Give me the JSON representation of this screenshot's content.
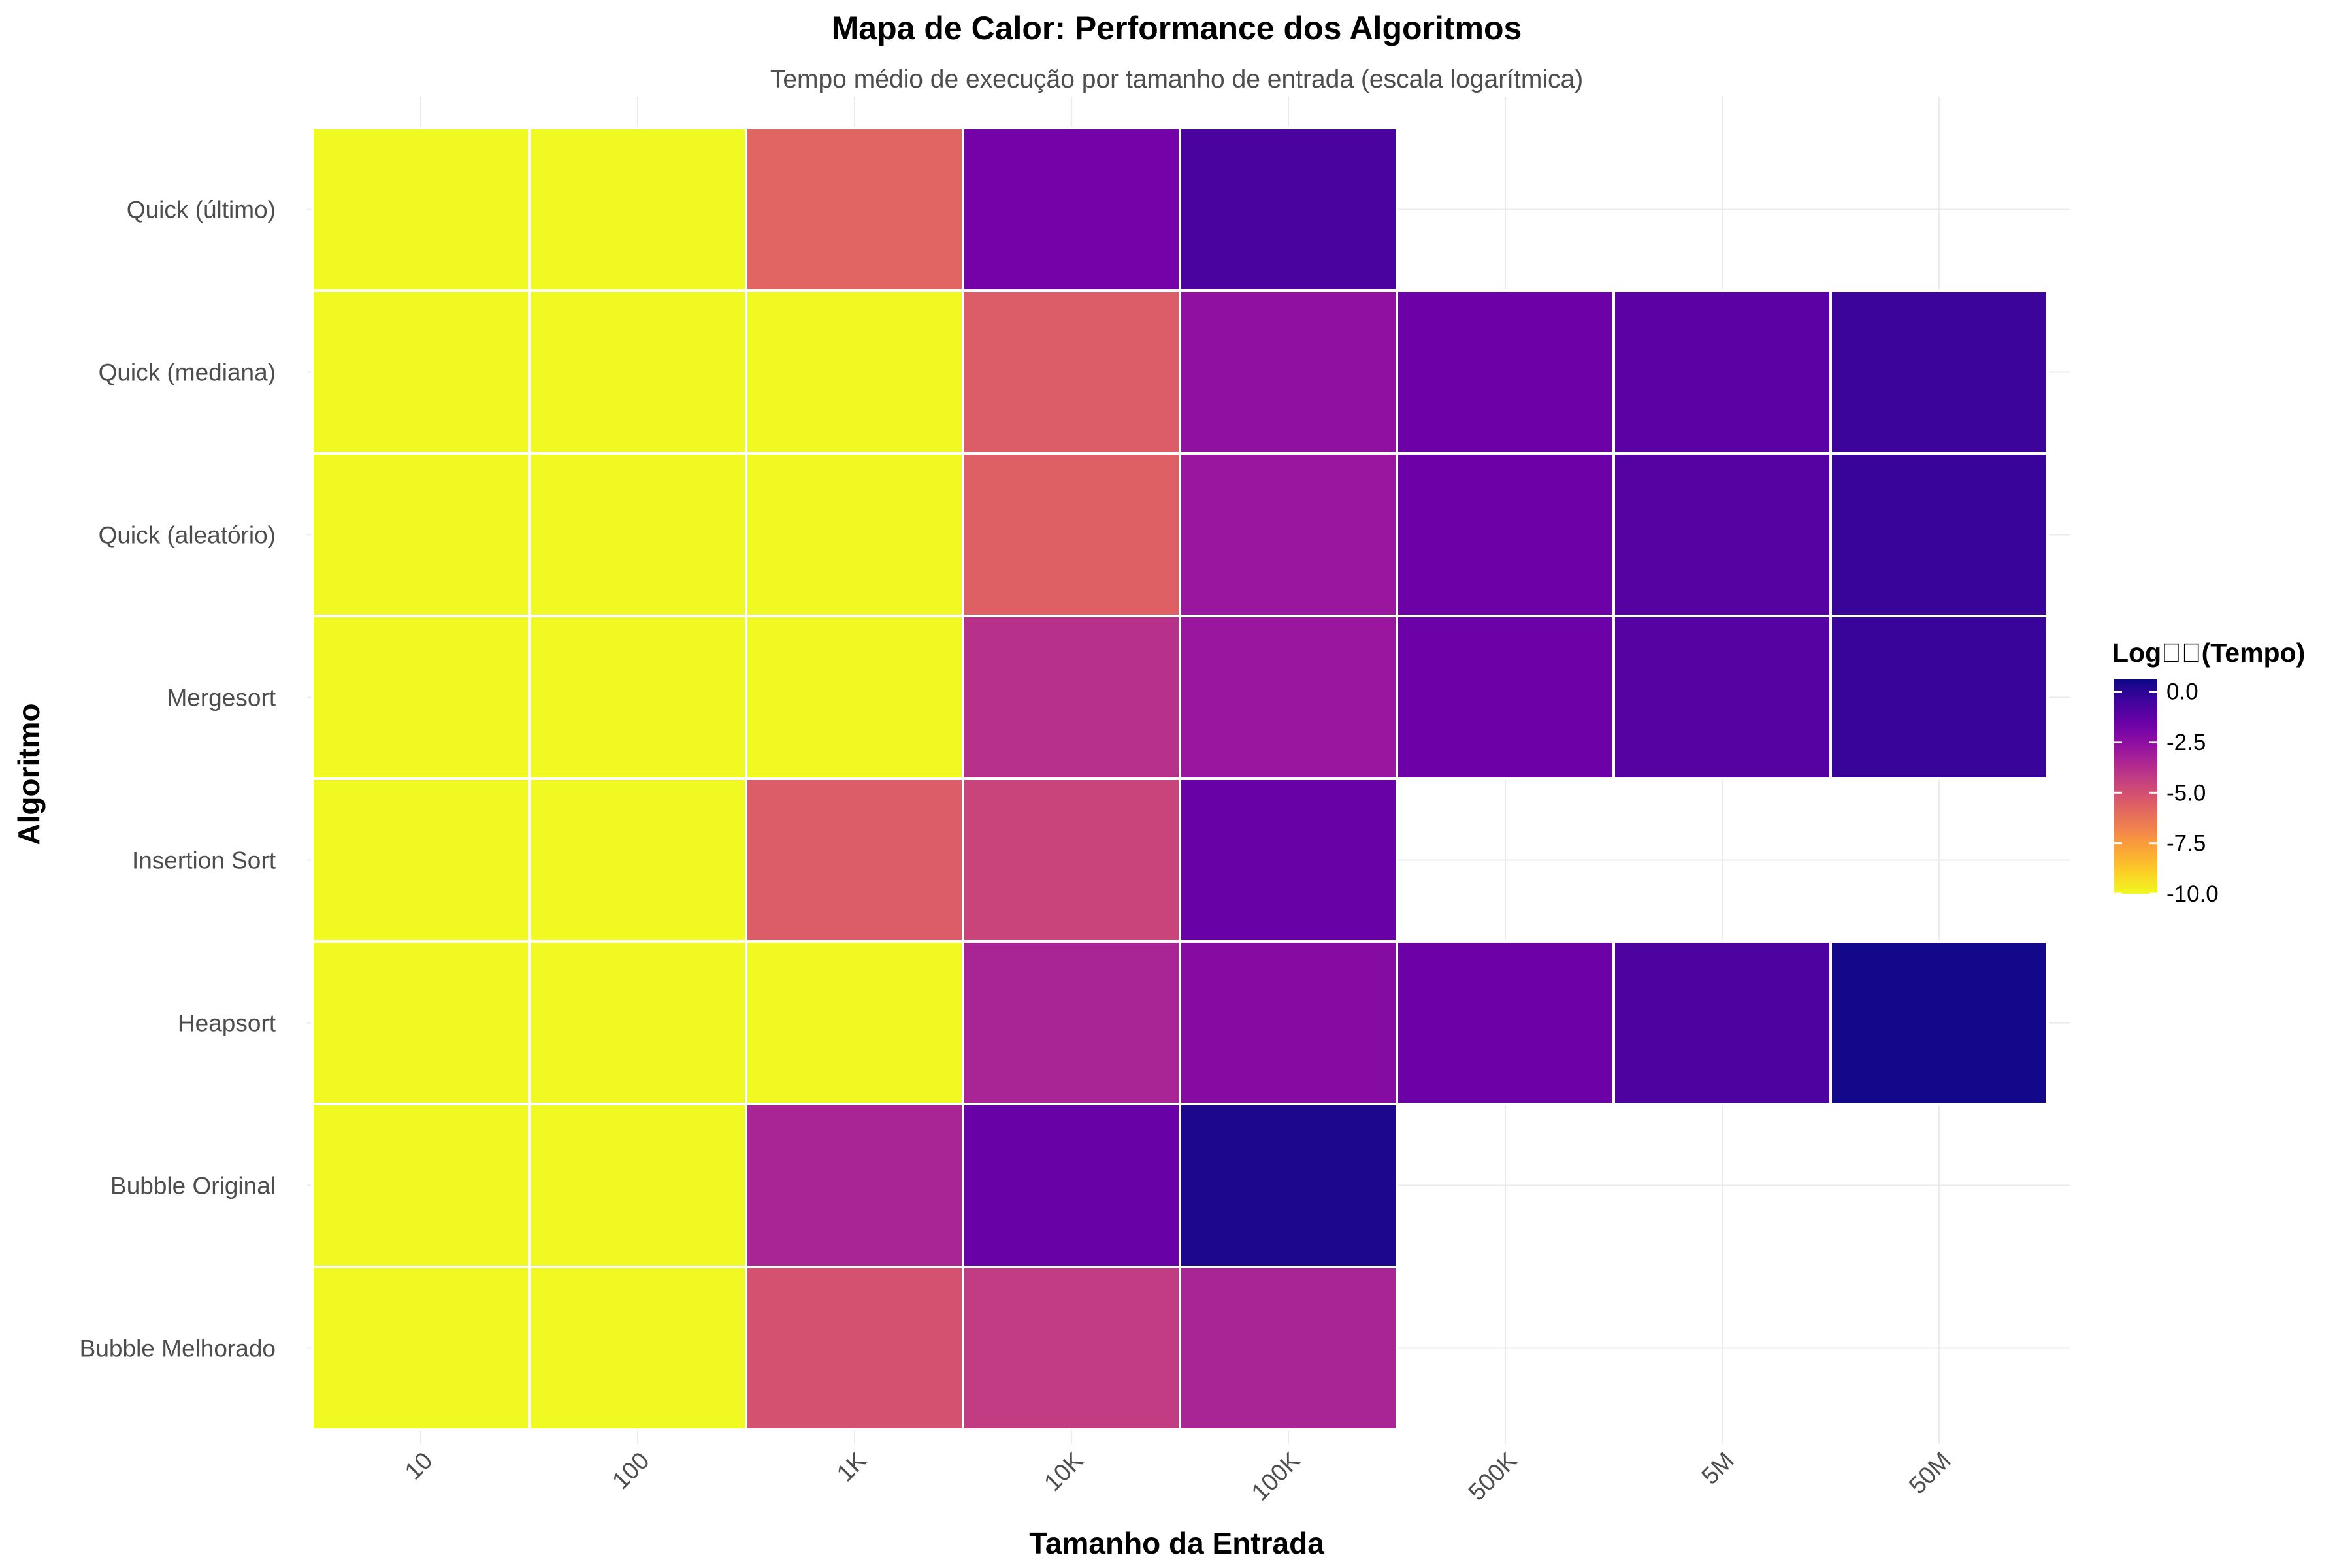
{
  "chart_data": {
    "type": "heatmap",
    "title": "Mapa de Calor: Performance dos Algoritmos",
    "subtitle": "Tempo médio de execução por tamanho de entrada (escala logarítmica)",
    "xlabel": "Tamanho da Entrada",
    "ylabel": "Algoritmo",
    "x_categories": [
      "10",
      "100",
      "1K",
      "10K",
      "100K",
      "500K",
      "5M",
      "50M"
    ],
    "y_categories": [
      "Quick (último)",
      "Quick (mediana)",
      "Quick (aleatório)",
      "Mergesort",
      "Insertion Sort",
      "Heapsort",
      "Bubble Original",
      "Bubble Melhorado"
    ],
    "values": [
      [
        -10.0,
        -10.0,
        -5.8,
        -1.8,
        -0.7,
        null,
        null,
        null
      ],
      [
        -10.0,
        -10.0,
        -10.0,
        -5.5,
        -2.6,
        -1.6,
        -1.1,
        -0.4
      ],
      [
        -10.0,
        -10.0,
        -10.0,
        -5.6,
        -2.9,
        -1.6,
        -1.0,
        -0.3
      ],
      [
        -10.0,
        -10.0,
        -10.0,
        -3.9,
        -2.9,
        -1.6,
        -1.0,
        -0.3
      ],
      [
        -10.0,
        -10.0,
        -5.5,
        -4.6,
        -1.5,
        null,
        null,
        null
      ],
      [
        -10.0,
        -10.0,
        -10.0,
        -3.4,
        -2.3,
        -1.6,
        -0.8,
        0.5
      ],
      [
        -10.0,
        -10.0,
        -3.4,
        -1.5,
        0.3,
        null,
        null,
        null
      ],
      [
        -10.0,
        -10.0,
        -5.1,
        -4.3,
        -3.4,
        null,
        null,
        null
      ]
    ],
    "legend": {
      "title": "Log\u0000\u0000(Tempo)",
      "ticks": [
        0.0,
        -2.5,
        -5.0,
        -7.5,
        -10.0
      ],
      "tick_labels": [
        "0.0",
        "-2.5",
        "-5.0",
        "-7.5",
        "-10.0"
      ],
      "range": [
        -10.0,
        0.6
      ],
      "placement": "right",
      "colormap": "plasma-reversed"
    },
    "grid": true,
    "colors": {
      "cell_border": "#ffffff",
      "grid": "#ebebeb",
      "plasma": [
        "#0d0887",
        "#46039f",
        "#7201a8",
        "#9c179e",
        "#bd3786",
        "#d8576b",
        "#ed7953",
        "#fb9f3a",
        "#fdca26",
        "#f0f921"
      ]
    }
  }
}
